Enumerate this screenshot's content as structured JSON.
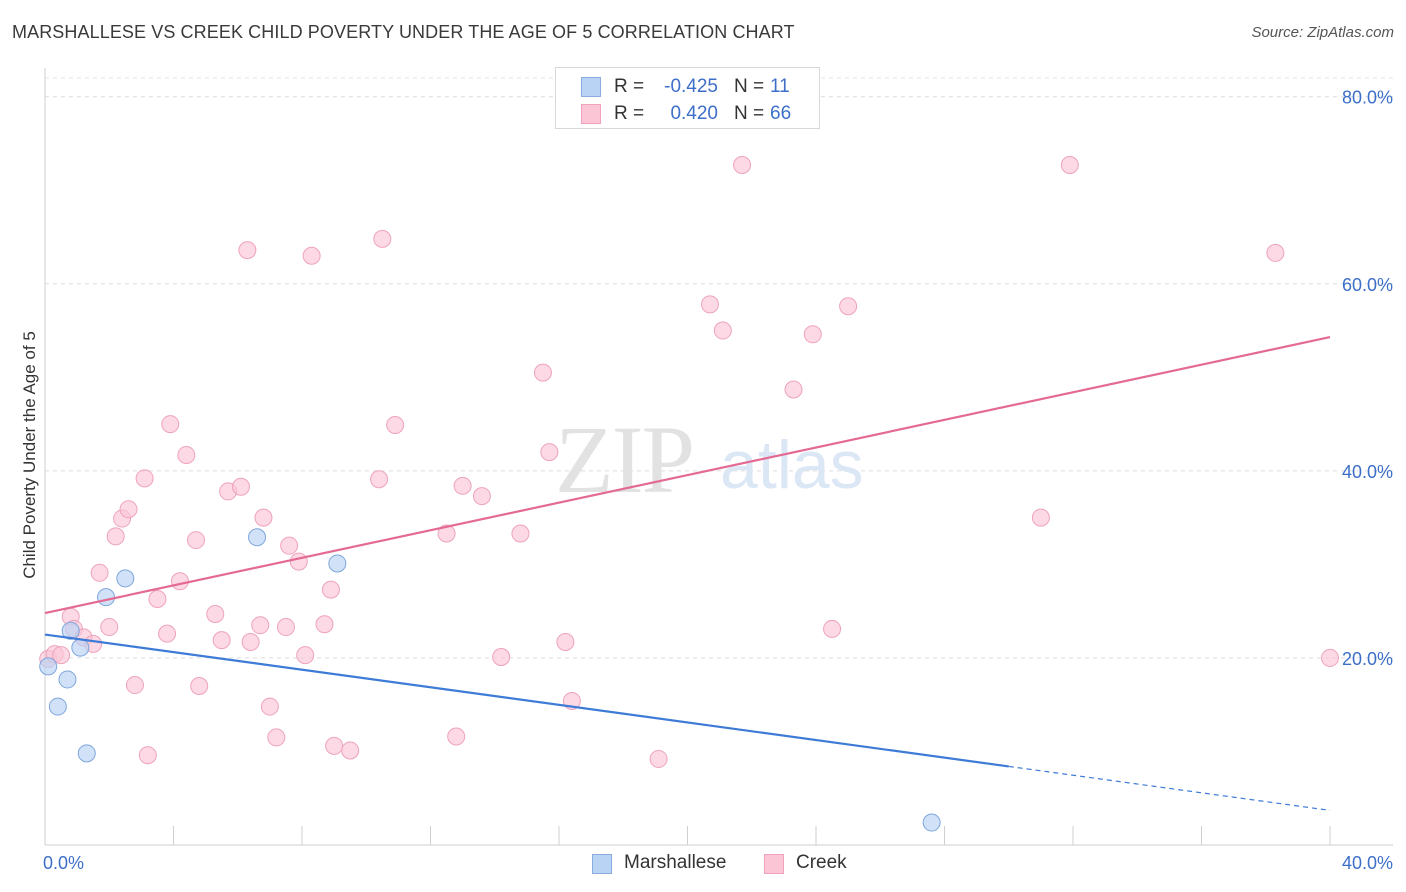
{
  "title": "MARSHALLESE VS CREEK CHILD POVERTY UNDER THE AGE OF 5 CORRELATION CHART",
  "source": "Source: ZipAtlas.com",
  "watermark": {
    "zip": "ZIP",
    "atlas": "atlas"
  },
  "legend_top": {
    "rows": [
      {
        "r_label": "R =",
        "r_value": "-0.425",
        "n_label": "N =",
        "n_value": "11",
        "fill": "#b9d3f5",
        "stroke": "#8aaee0"
      },
      {
        "r_label": "R =",
        "r_value": "0.420",
        "n_label": "N =",
        "n_value": "66",
        "fill": "#fbc5d6",
        "stroke": "#f0a3bb"
      }
    ]
  },
  "legend_bottom": [
    {
      "label": "Marshallese",
      "fill": "#b9d3f5",
      "stroke": "#8aaee0"
    },
    {
      "label": "Creek",
      "fill": "#fbc5d6",
      "stroke": "#f0a3bb"
    }
  ],
  "chart_data": {
    "type": "scatter",
    "title": "MARSHALLESE VS CREEK CHILD POVERTY UNDER THE AGE OF 5 CORRELATION CHART",
    "xlabel": "",
    "ylabel": "Child Poverty Under the Age of 5",
    "xlim": [
      0,
      40
    ],
    "ylim": [
      0,
      82
    ],
    "x_tick_labels": [
      "0.0%",
      "40.0%"
    ],
    "y_ticks": [
      20,
      40,
      60,
      80
    ],
    "y_tick_labels": [
      "20.0%",
      "40.0%",
      "60.0%",
      "80.0%"
    ],
    "grid": true,
    "colors": {
      "marshallese": "#4a86d8",
      "creek": "#e8739b",
      "tick_label": "#3d6fc9"
    },
    "series": [
      {
        "name": "Marshallese",
        "color": "#b9d3f5",
        "edge": "#7fa6dc",
        "points": [
          [
            0.1,
            19.1
          ],
          [
            0.4,
            14.8
          ],
          [
            0.7,
            17.7
          ],
          [
            0.8,
            22.9
          ],
          [
            1.1,
            21.1
          ],
          [
            1.3,
            9.8
          ],
          [
            1.9,
            26.5
          ],
          [
            2.5,
            28.5
          ],
          [
            6.6,
            32.9
          ],
          [
            9.1,
            30.1
          ],
          [
            27.6,
            2.4
          ]
        ],
        "trend": {
          "x0": 0,
          "y0": 22.5,
          "x1": 30,
          "y1": 8.4,
          "dash_x1": 40,
          "dash_y1": 3.7,
          "color": "#3d7bd6"
        }
      },
      {
        "name": "Creek",
        "color": "#fbc5d6",
        "edge": "#eea3bc",
        "points": [
          [
            0.1,
            19.9
          ],
          [
            0.3,
            20.4
          ],
          [
            0.5,
            20.3
          ],
          [
            0.8,
            24.4
          ],
          [
            0.9,
            23.1
          ],
          [
            1.2,
            22.2
          ],
          [
            1.5,
            21.5
          ],
          [
            1.7,
            29.1
          ],
          [
            2.0,
            23.3
          ],
          [
            2.2,
            33.0
          ],
          [
            2.4,
            34.9
          ],
          [
            2.6,
            35.9
          ],
          [
            2.8,
            17.1
          ],
          [
            3.1,
            39.2
          ],
          [
            3.2,
            9.6
          ],
          [
            3.5,
            26.3
          ],
          [
            3.8,
            22.6
          ],
          [
            3.9,
            45.0
          ],
          [
            4.2,
            28.2
          ],
          [
            4.4,
            41.7
          ],
          [
            4.7,
            32.6
          ],
          [
            4.8,
            17.0
          ],
          [
            5.3,
            24.7
          ],
          [
            5.5,
            21.9
          ],
          [
            5.7,
            37.8
          ],
          [
            6.1,
            38.3
          ],
          [
            6.3,
            63.6
          ],
          [
            6.4,
            21.7
          ],
          [
            6.7,
            23.5
          ],
          [
            6.8,
            35.0
          ],
          [
            7.0,
            14.8
          ],
          [
            7.2,
            11.5
          ],
          [
            7.5,
            23.3
          ],
          [
            7.6,
            32.0
          ],
          [
            7.9,
            30.3
          ],
          [
            8.1,
            20.3
          ],
          [
            8.3,
            63.0
          ],
          [
            8.7,
            23.6
          ],
          [
            8.9,
            27.3
          ],
          [
            9.0,
            10.6
          ],
          [
            9.5,
            10.1
          ],
          [
            10.4,
            39.1
          ],
          [
            10.5,
            64.8
          ],
          [
            10.9,
            44.9
          ],
          [
            12.5,
            33.3
          ],
          [
            12.8,
            11.6
          ],
          [
            13.0,
            38.4
          ],
          [
            13.6,
            37.3
          ],
          [
            14.2,
            20.1
          ],
          [
            14.8,
            33.3
          ],
          [
            15.5,
            50.5
          ],
          [
            15.7,
            42.0
          ],
          [
            16.2,
            21.7
          ],
          [
            16.4,
            15.4
          ],
          [
            19.1,
            9.2
          ],
          [
            20.7,
            57.8
          ],
          [
            21.1,
            55.0
          ],
          [
            21.7,
            72.7
          ],
          [
            23.3,
            48.7
          ],
          [
            23.9,
            54.6
          ],
          [
            24.5,
            23.1
          ],
          [
            25.0,
            57.6
          ],
          [
            31.0,
            35.0
          ],
          [
            31.9,
            72.7
          ],
          [
            38.3,
            63.3
          ],
          [
            40.0,
            20.0
          ]
        ],
        "trend": {
          "x0": 0,
          "y0": 24.8,
          "x1": 40,
          "y1": 54.3,
          "color": "#e46a94"
        }
      }
    ]
  }
}
